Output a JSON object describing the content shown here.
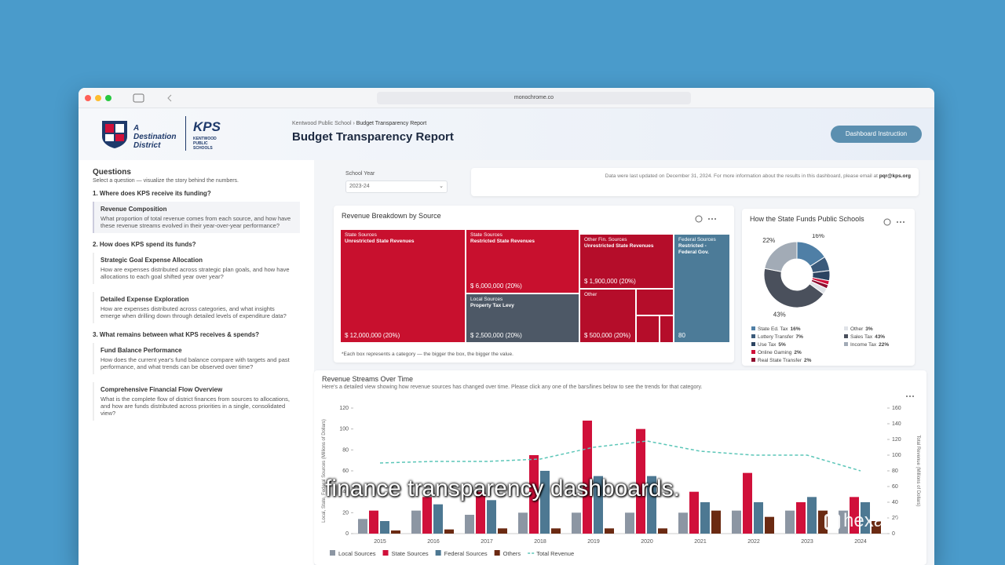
{
  "browser": {
    "url": "monochrome.co"
  },
  "header": {
    "tagline": "A Destination District",
    "brand": "KPS",
    "brand_sub": "KENTWOOD PUBLIC SCHOOLS",
    "breadcrumb": [
      "Kentwood Public School",
      "Budget Transparency Report"
    ],
    "title": "Budget Transparency Report",
    "button": "Dashboard Instruction"
  },
  "sidebar": {
    "title": "Questions",
    "subtitle": "Select a question — visualize the story behind the numbers.",
    "sections": [
      {
        "heading": "1. Where does KPS receive its funding?",
        "items": [
          {
            "title": "Revenue Composition",
            "text": "What proportion of total revenue comes from each source, and how have these revenue streams evolved in their year-over-year performance?"
          }
        ]
      },
      {
        "heading": "2. How does KPS spend its funds?",
        "items": [
          {
            "title": "Strategic Goal Expense Allocation",
            "text": "How are expenses distributed across strategic plan goals, and how have allocations to each goal shifted year over year?"
          },
          {
            "title": "Detailed Expense Exploration",
            "text": "How are expenses distributed across categories, and what insights emerge when drilling down through detailed levels of expenditure data?"
          }
        ]
      },
      {
        "heading": "3. What remains between what KPS receives & spends?",
        "items": [
          {
            "title": "Fund Balance Performance",
            "text": "How does the current year's fund balance compare with targets and past performance, and what trends can be observed over time?"
          },
          {
            "title": "Comprehensive Financial Flow Overview",
            "text": "What is the complete flow of district finances from sources to allocations, and how are funds distributed across priorities in a single, consolidated view?"
          }
        ]
      }
    ]
  },
  "filter": {
    "label": "School Year",
    "value": "2023-24"
  },
  "notice": {
    "text": "Data were last updated on December 31, 2024. For more information about the results in this dashboard, please email at",
    "email": "pqr@kps.org"
  },
  "treemap": {
    "title": "Revenue Breakdown by Source",
    "note": "*Each box represents a category — the bigger the box, the bigger the value.",
    "tiles": [
      {
        "lines": [
          "State Sources",
          "Unrestricted State Revenues"
        ],
        "value_label": "$ 12,000,000 (20%)"
      },
      {
        "lines": [
          "State Sources",
          "Restricted State Revenues"
        ],
        "value_label": "$ 6,000,000 (20%)"
      },
      {
        "lines": [
          "Local Sources",
          "Property Tax Levy"
        ],
        "value_label": "$ 2,500,000 (20%)"
      },
      {
        "lines": [
          "Other Fin. Sources",
          "Unrestricted State Revenues"
        ],
        "value_label": "$ 1,900,000 (20%)"
      },
      {
        "lines": [
          "Other"
        ],
        "value_label": "$ 500,000 (20%)"
      },
      {
        "lines": [
          "Federal Sources",
          "Restricted - Federal Gov."
        ],
        "value_label": "80"
      }
    ]
  },
  "donut": {
    "title": "How the State Funds Public Schools",
    "labels": [
      "State Ed. Tax",
      "Lottery Transfer",
      "Use Tax",
      "Online Gaming",
      "Real State Transfer",
      "Other",
      "Sales Tax",
      "Income Tax"
    ],
    "values": [
      16,
      7,
      5,
      2,
      2,
      3,
      43,
      22
    ],
    "value_labels": [
      "16%",
      "7%",
      "5%",
      "2%",
      "2%",
      "3%",
      "43%",
      "22%"
    ],
    "colors": [
      "#4f7fa6",
      "#3b5a7a",
      "#2c4461",
      "#d0103a",
      "#8e0b2e",
      "#dfe2e7",
      "#4a505c",
      "#a2abb6"
    ]
  },
  "revenue_chart": {
    "title": "Revenue Streams Over Time",
    "subtitle": "Here's a detailed view showing how revenue sources has changed over time. Please click any one of the bars/lines below to see the trends for that category.",
    "y_label": "Local, State, Federal Sources (Millions of Dollars)",
    "y2_label": "Total Revenue (Millions of Dollars)",
    "categories": [
      "2015",
      "2016",
      "2017",
      "2018",
      "2019",
      "2020",
      "2021",
      "2022",
      "2023",
      "2024"
    ],
    "ylim": [
      0,
      120
    ],
    "yticks": [
      0,
      20,
      40,
      60,
      80,
      100,
      120
    ],
    "y2lim": [
      0,
      160
    ],
    "y2ticks": [
      0,
      20,
      40,
      60,
      80,
      100,
      120,
      140,
      160
    ],
    "series": [
      {
        "name": "Local Sources",
        "type": "bar",
        "color": "#8c96a3",
        "values": [
          14,
          22,
          18,
          20,
          20,
          20,
          20,
          22,
          22,
          22
        ]
      },
      {
        "name": "State Sources",
        "type": "bar",
        "color": "#d0103a",
        "values": [
          22,
          35,
          40,
          75,
          108,
          100,
          40,
          58,
          30,
          35
        ]
      },
      {
        "name": "Federal Sources",
        "type": "bar",
        "color": "#4d7892",
        "values": [
          12,
          28,
          32,
          60,
          55,
          55,
          30,
          30,
          35,
          30
        ]
      },
      {
        "name": "Others",
        "type": "bar",
        "color": "#6b2a12",
        "values": [
          3,
          4,
          5,
          5,
          5,
          5,
          22,
          16,
          22,
          12
        ]
      },
      {
        "name": "Total Revenue",
        "type": "line",
        "axis": "y2",
        "color": "#5cc6b8",
        "values": [
          90,
          92,
          92,
          95,
          110,
          118,
          105,
          100,
          100,
          80
        ]
      }
    ]
  },
  "overlay": {
    "caption": "finance transparency dashboards.",
    "watermark": "hexalytics"
  }
}
